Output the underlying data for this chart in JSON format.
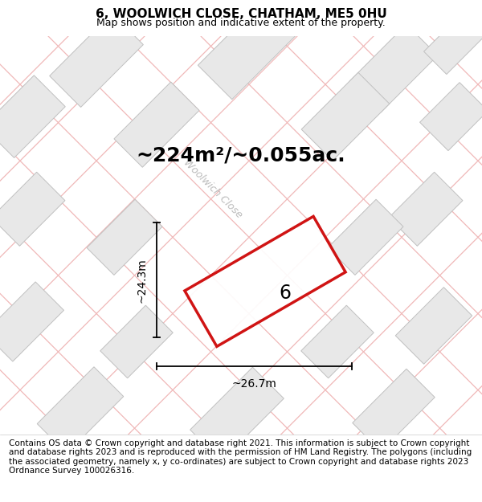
{
  "title": "6, WOOLWICH CLOSE, CHATHAM, ME5 0HU",
  "subtitle": "Map shows position and indicative extent of the property.",
  "area_text": "~224m²/~0.055ac.",
  "label_number": "6",
  "dim_height": "~24.3m",
  "dim_width": "~26.7m",
  "street_label": "Woolwich Close",
  "footer": "Contains OS data © Crown copyright and database right 2021. This information is subject to Crown copyright and database rights 2023 and is reproduced with the permission of HM Land Registry. The polygons (including the associated geometry, namely x, y co-ordinates) are subject to Crown copyright and database rights 2023 Ordnance Survey 100026316.",
  "map_bg": "#ffffff",
  "plot_border_color": "#cc0000",
  "building_fill": "#e8e8e8",
  "building_edge": "#c0c0c0",
  "pink_line_color": "#f0b8b8",
  "street_fill": "#f5f5f5",
  "title_fontsize": 11,
  "subtitle_fontsize": 9,
  "area_fontsize": 18,
  "dim_fontsize": 10,
  "footer_fontsize": 7.5,
  "street_label_fontsize": 9
}
